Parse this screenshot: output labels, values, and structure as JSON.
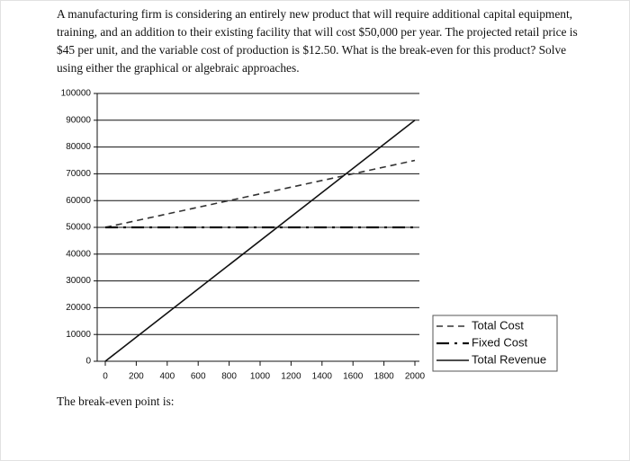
{
  "question": "A manufacturing firm is considering an entirely new product that will require additional capital equipment, training, and an addition to their existing facility that will cost $50,000 per year. The projected retail price is $45 per unit, and the variable cost of production is $12.50. What is the break-even for this product? Solve using either the graphical or algebraic approaches.",
  "chart_data": {
    "type": "line",
    "x": [
      0,
      2000
    ],
    "series": [
      {
        "name": "Total Cost",
        "color": "#333333",
        "line_style": "dashed",
        "values": [
          50000,
          75000
        ]
      },
      {
        "name": "Fixed Cost",
        "color": "#111111",
        "line_style": "dash-dot",
        "values": [
          50000,
          50000
        ]
      },
      {
        "name": "Total Revenue",
        "color": "#111111",
        "line_style": "solid",
        "values": [
          0,
          90000
        ]
      }
    ],
    "xlim": [
      0,
      2000
    ],
    "xticks": [
      0,
      200,
      400,
      600,
      800,
      1000,
      1200,
      1400,
      1600,
      1800,
      2000
    ],
    "ylim": [
      0,
      100000
    ],
    "yticks": [
      0,
      10000,
      20000,
      30000,
      40000,
      50000,
      60000,
      70000,
      80000,
      90000,
      100000
    ],
    "grid": true,
    "legend": "lower right"
  },
  "footer": "The break-even point is:"
}
